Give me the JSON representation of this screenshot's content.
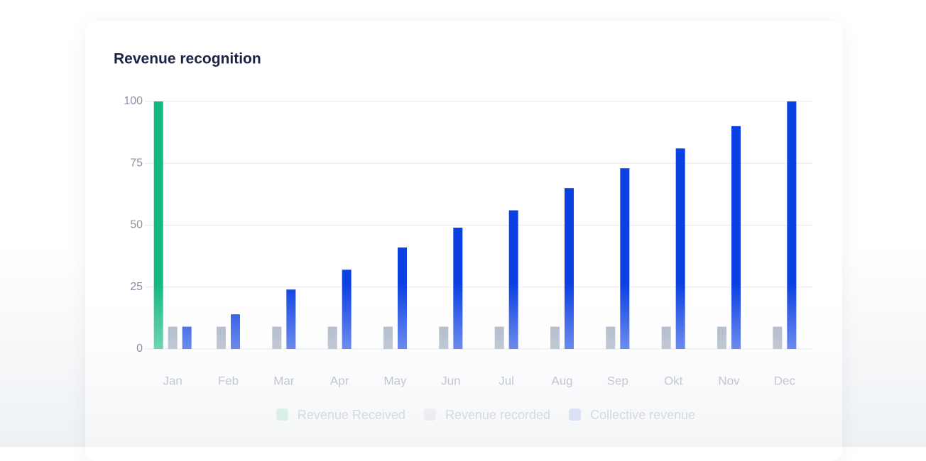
{
  "chart_data": {
    "type": "bar",
    "title": "Revenue recognition",
    "categories": [
      "Jan",
      "Feb",
      "Mar",
      "Apr",
      "May",
      "Jun",
      "Jul",
      "Aug",
      "Sep",
      "Okt",
      "Nov",
      "Dec"
    ],
    "series": [
      {
        "name": "Revenue Received",
        "color": "#12b981",
        "values": [
          100,
          null,
          null,
          null,
          null,
          null,
          null,
          null,
          null,
          null,
          null,
          null
        ]
      },
      {
        "name": "Revenue recorded",
        "color": "#9aa6bb",
        "values": [
          9,
          9,
          9,
          9,
          9,
          9,
          9,
          9,
          9,
          9,
          9,
          9
        ]
      },
      {
        "name": "Collective revenue",
        "color": "#0b40e2",
        "values": [
          9,
          14,
          24,
          32,
          41,
          49,
          56,
          65,
          73,
          81,
          90,
          100
        ]
      }
    ],
    "ylim": [
      0,
      100
    ],
    "yticks": [
      0,
      25,
      50,
      75,
      100
    ],
    "grid": true,
    "legend": "bottom"
  }
}
